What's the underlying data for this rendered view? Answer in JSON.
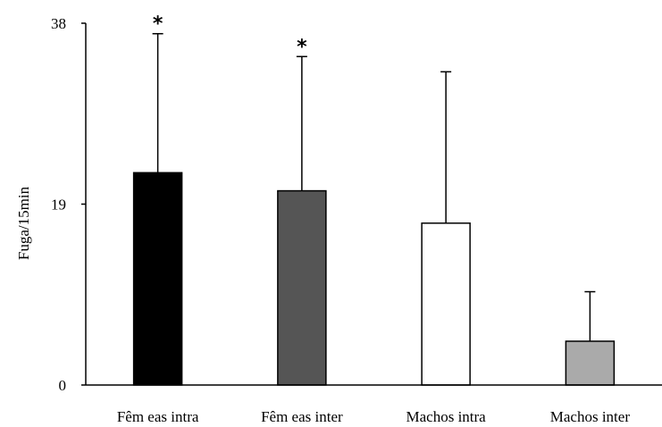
{
  "chart_data": {
    "type": "bar",
    "ylabel": "Fuga/15min",
    "ylim": [
      0,
      38
    ],
    "yticks": [
      "0",
      "19",
      "38"
    ],
    "categories": [
      "Fêm eas intra",
      "Fêm eas inter",
      "Machos intra",
      "Machos inter"
    ],
    "values": [
      22.3,
      20.4,
      17.0,
      4.6
    ],
    "error_upper": [
      14.6,
      14.1,
      15.9,
      5.2
    ],
    "significance": [
      "*",
      "*",
      "",
      ""
    ],
    "bar_colors": [
      "#000000",
      "#555555",
      "#ffffff",
      "#aaaaaa"
    ],
    "grid": false
  }
}
